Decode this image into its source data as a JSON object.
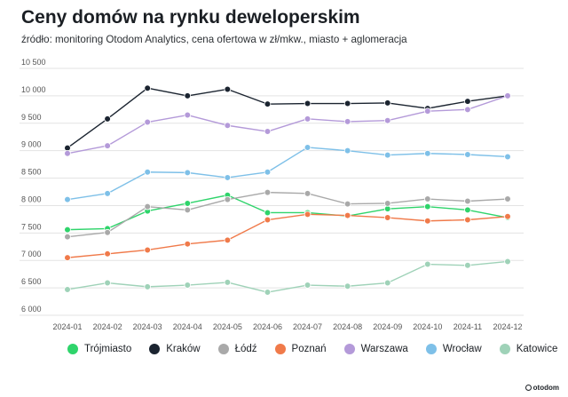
{
  "title": "Ceny domów na rynku deweloperskim",
  "subtitle": "źródło: monitoring Otodom Analytics, cena ofertowa w zł/mkw., miasto + aglomeracja",
  "brand": "otodom",
  "chart_data": {
    "type": "line",
    "title": "Ceny domów na rynku deweloperskim",
    "xlabel": "",
    "ylabel": "",
    "ylim": [
      6000,
      10500
    ],
    "grid": true,
    "legend_position": "bottom",
    "y_ticks": [
      "6 000",
      "6 500",
      "7 000",
      "7 500",
      "8 000",
      "8 500",
      "9 000",
      "9 500",
      "10 000",
      "10 500"
    ],
    "categories": [
      "2024-01",
      "2024-02",
      "2024-03",
      "2024-04",
      "2024-05",
      "2024-06",
      "2024-07",
      "2024-08",
      "2024-09",
      "2024-10",
      "2024-11",
      "2024-12"
    ],
    "series": [
      {
        "name": "Trójmiasto",
        "color": "#2fd46b",
        "values": [
          7560,
          7580,
          7900,
          8040,
          8190,
          7870,
          7870,
          7810,
          7940,
          7980,
          7920,
          7780
        ]
      },
      {
        "name": "Kraków",
        "color": "#1b2430",
        "values": [
          9050,
          9580,
          10140,
          10000,
          10120,
          9850,
          9860,
          9860,
          9870,
          9770,
          9900,
          10000
        ]
      },
      {
        "name": "Łódź",
        "color": "#a9a9a9",
        "values": [
          7430,
          7510,
          7980,
          7920,
          8110,
          8240,
          8220,
          8030,
          8040,
          8120,
          8080,
          8120
        ]
      },
      {
        "name": "Poznań",
        "color": "#f07a4a",
        "values": [
          7050,
          7120,
          7190,
          7300,
          7370,
          7740,
          7840,
          7820,
          7780,
          7720,
          7740,
          7800
        ]
      },
      {
        "name": "Warszawa",
        "color": "#b49ad9",
        "values": [
          8950,
          9090,
          9520,
          9650,
          9460,
          9350,
          9580,
          9530,
          9550,
          9720,
          9750,
          10000
        ]
      },
      {
        "name": "Wrocław",
        "color": "#7ec0e8",
        "values": [
          8110,
          8220,
          8610,
          8600,
          8510,
          8610,
          9060,
          9000,
          8920,
          8950,
          8930,
          8890
        ]
      },
      {
        "name": "Katowice",
        "color": "#9fd2b8",
        "values": [
          6470,
          6590,
          6520,
          6550,
          6600,
          6420,
          6550,
          6530,
          6590,
          6930,
          6910,
          6980
        ]
      }
    ]
  }
}
